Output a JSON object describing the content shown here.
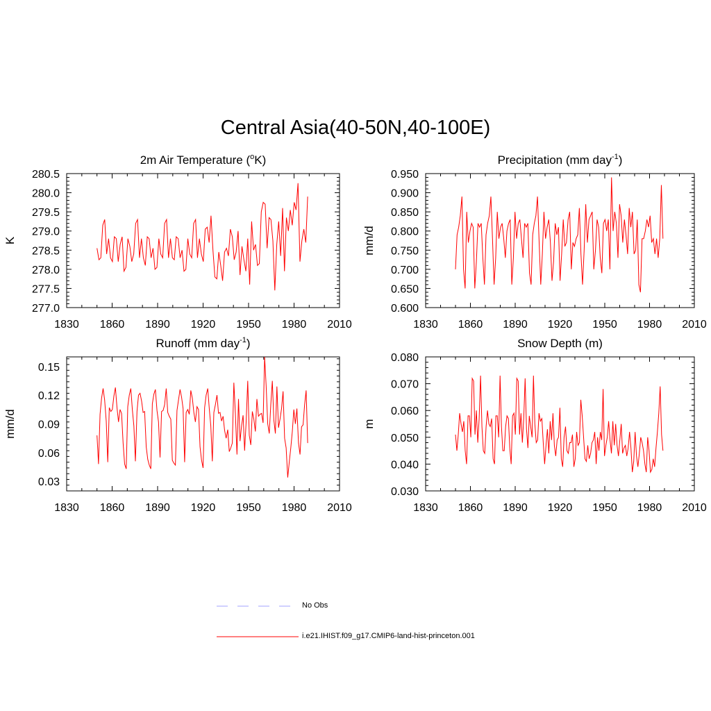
{
  "title": "Central Asia(40-50N,40-100E)",
  "colors": {
    "model": "#ff0000",
    "obs": "#b3b3ff",
    "axis": "#000000"
  },
  "legend": {
    "obs_label": "No Obs",
    "model_label": "i.e21.IHIST.f09_g17.CMIP6-land-hist-princeton.001"
  },
  "chart_data": [
    {
      "type": "line",
      "title_parts": [
        "2m Air Temperature (",
        "o",
        "K)"
      ],
      "ylabel": "K",
      "xlim": [
        1830,
        2010
      ],
      "ylim": [
        277.0,
        280.5
      ],
      "xticks": [
        1830,
        1860,
        1890,
        1920,
        1950,
        1980,
        2010
      ],
      "yticks": [
        277.0,
        277.5,
        278.0,
        278.5,
        279.0,
        279.5,
        280.0,
        280.5
      ],
      "ytick_labels": [
        "277.0",
        "277.5",
        "278.0",
        "278.5",
        "279.0",
        "279.5",
        "280.0",
        "280.5"
      ],
      "series": [
        {
          "x_start": 1850,
          "values": [
            278.55,
            278.25,
            278.3,
            279.15,
            279.3,
            278.4,
            278.8,
            278.3,
            278.2,
            278.85,
            278.8,
            278.2,
            278.65,
            278.85,
            277.95,
            278.05,
            278.8,
            278.6,
            278.2,
            278.4,
            279.2,
            279.3,
            278.3,
            278.8,
            278.3,
            278.1,
            278.85,
            278.8,
            278.3,
            278.55,
            278.0,
            278.05,
            278.8,
            278.4,
            278.3,
            279.2,
            279.3,
            278.3,
            278.8,
            278.3,
            278.25,
            278.85,
            278.8,
            278.3,
            278.5,
            277.95,
            278.0,
            278.8,
            278.4,
            278.3,
            279.2,
            279.3,
            278.3,
            278.8,
            278.4,
            278.2,
            279.05,
            279.1,
            278.7,
            279.4,
            278.5,
            277.8,
            277.75,
            278.45,
            278.1,
            277.7,
            278.45,
            278.55,
            278.35,
            279.05,
            278.85,
            278.25,
            278.45,
            279.0,
            277.85,
            278.6,
            278.25,
            277.95,
            278.8,
            277.6,
            279.25,
            278.5,
            278.65,
            278.1,
            278.15,
            279.5,
            279.75,
            279.7,
            278.55,
            279.35,
            279.3,
            278.75,
            277.45,
            278.65,
            279.25,
            278.35,
            279.6,
            277.95,
            279.35,
            279.0,
            279.55,
            279.15,
            279.75,
            279.55,
            280.25,
            278.2,
            278.75,
            279.05,
            278.7,
            279.9
          ]
        }
      ]
    },
    {
      "type": "line",
      "title_parts": [
        "Precipitation (mm day",
        "-1",
        ")"
      ],
      "ylabel": "mm/d",
      "xlim": [
        1830,
        2010
      ],
      "ylim": [
        0.6,
        0.95
      ],
      "xticks": [
        1830,
        1860,
        1890,
        1920,
        1950,
        1980,
        2010
      ],
      "yticks": [
        0.6,
        0.65,
        0.7,
        0.75,
        0.8,
        0.85,
        0.9,
        0.95
      ],
      "ytick_labels": [
        "0.600",
        "0.650",
        "0.700",
        "0.750",
        "0.800",
        "0.850",
        "0.900",
        "0.950"
      ],
      "series": [
        {
          "x_start": 1850,
          "values": [
            0.7,
            0.79,
            0.81,
            0.84,
            0.89,
            0.7,
            0.65,
            0.85,
            0.77,
            0.8,
            0.82,
            0.81,
            0.65,
            0.72,
            0.82,
            0.81,
            0.82,
            0.73,
            0.66,
            0.79,
            0.82,
            0.84,
            0.89,
            0.78,
            0.66,
            0.73,
            0.85,
            0.78,
            0.81,
            0.82,
            0.78,
            0.73,
            0.8,
            0.82,
            0.83,
            0.66,
            0.73,
            0.85,
            0.78,
            0.82,
            0.83,
            0.78,
            0.73,
            0.82,
            0.81,
            0.82,
            0.69,
            0.66,
            0.79,
            0.82,
            0.84,
            0.89,
            0.77,
            0.66,
            0.74,
            0.85,
            0.78,
            0.81,
            0.83,
            0.77,
            0.67,
            0.72,
            0.82,
            0.79,
            0.81,
            0.67,
            0.74,
            0.83,
            0.76,
            0.77,
            0.83,
            0.85,
            0.7,
            0.77,
            0.76,
            0.78,
            0.79,
            0.86,
            0.74,
            0.66,
            0.75,
            0.87,
            0.77,
            0.83,
            0.84,
            0.85,
            0.7,
            0.75,
            0.83,
            0.81,
            0.73,
            0.69,
            0.82,
            0.83,
            0.8,
            0.83,
            0.7,
            0.94,
            0.8,
            0.85,
            0.82,
            0.73,
            0.87,
            0.84,
            0.77,
            0.83,
            0.79,
            0.74,
            0.86,
            0.81,
            0.85,
            0.74,
            0.75,
            0.83,
            0.66,
            0.64,
            0.78,
            0.78,
            0.8,
            0.83,
            0.81,
            0.84,
            0.77,
            0.78,
            0.74,
            0.78,
            0.73,
            0.78,
            0.92,
            0.78
          ]
        }
      ]
    },
    {
      "type": "line",
      "title_parts": [
        "Runoff (mm day",
        "-1",
        ")"
      ],
      "ylabel": "mm/d",
      "xlim": [
        1830,
        2010
      ],
      "ylim": [
        0.02,
        0.16
      ],
      "xticks": [
        1830,
        1860,
        1890,
        1920,
        1950,
        1980,
        2010
      ],
      "yticks": [
        0.03,
        0.06,
        0.09,
        0.12,
        0.15
      ],
      "ytick_labels": [
        "0.03",
        "0.06",
        "0.09",
        "0.12",
        "0.15"
      ],
      "series": [
        {
          "x_start": 1850,
          "values": [
            0.078,
            0.048,
            0.1,
            0.117,
            0.127,
            0.115,
            0.093,
            0.05,
            0.107,
            0.103,
            0.105,
            0.119,
            0.128,
            0.107,
            0.092,
            0.105,
            0.101,
            0.07,
            0.048,
            0.043,
            0.108,
            0.12,
            0.127,
            0.105,
            0.088,
            0.051,
            0.103,
            0.12,
            0.122,
            0.114,
            0.102,
            0.103,
            0.066,
            0.053,
            0.047,
            0.043,
            0.111,
            0.121,
            0.126,
            0.104,
            0.092,
            0.055,
            0.103,
            0.104,
            0.11,
            0.127,
            0.102,
            0.098,
            0.095,
            0.052,
            0.049,
            0.047,
            0.104,
            0.115,
            0.126,
            0.118,
            0.106,
            0.05,
            0.102,
            0.105,
            0.1,
            0.125,
            0.117,
            0.102,
            0.092,
            0.108,
            0.105,
            0.066,
            0.052,
            0.044,
            0.107,
            0.12,
            0.127,
            0.106,
            0.088,
            0.051,
            0.102,
            0.11,
            0.12,
            0.101,
            0.102,
            0.093,
            0.098,
            0.083,
            0.075,
            0.084,
            0.061,
            0.065,
            0.07,
            0.133,
            0.101,
            0.058,
            0.116,
            0.072,
            0.088,
            0.099,
            0.062,
            0.092,
            0.135,
            0.078,
            0.068,
            0.103,
            0.095,
            0.082,
            0.116,
            0.098,
            0.1,
            0.101,
            0.091,
            0.16,
            0.13,
            0.09,
            0.08,
            0.11,
            0.135,
            0.094,
            0.08,
            0.129,
            0.086,
            0.095,
            0.106,
            0.124,
            0.075,
            0.065,
            0.034,
            0.05,
            0.065,
            0.082,
            0.105,
            0.09,
            0.106,
            0.07,
            0.058,
            0.087,
            0.089,
            0.11,
            0.125,
            0.07
          ]
        }
      ]
    },
    {
      "type": "line",
      "title_parts": [
        "Snow Depth (m)"
      ],
      "ylabel": "m",
      "xlim": [
        1830,
        2010
      ],
      "ylim": [
        0.03,
        0.08
      ],
      "xticks": [
        1830,
        1860,
        1890,
        1920,
        1950,
        1980,
        2010
      ],
      "yticks": [
        0.03,
        0.04,
        0.05,
        0.06,
        0.07,
        0.08
      ],
      "ytick_labels": [
        "0.030",
        "0.040",
        "0.050",
        "0.060",
        "0.070",
        "0.080"
      ],
      "series": [
        {
          "x_start": 1850,
          "values": [
            0.051,
            0.045,
            0.051,
            0.059,
            0.055,
            0.052,
            0.056,
            0.045,
            0.04,
            0.058,
            0.058,
            0.05,
            0.072,
            0.071,
            0.051,
            0.06,
            0.048,
            0.057,
            0.073,
            0.054,
            0.045,
            0.044,
            0.054,
            0.06,
            0.055,
            0.054,
            0.057,
            0.042,
            0.04,
            0.058,
            0.058,
            0.05,
            0.073,
            0.054,
            0.045,
            0.045,
            0.054,
            0.058,
            0.057,
            0.046,
            0.04,
            0.058,
            0.059,
            0.051,
            0.072,
            0.071,
            0.051,
            0.059,
            0.048,
            0.057,
            0.072,
            0.053,
            0.046,
            0.058,
            0.054,
            0.05,
            0.073,
            0.055,
            0.048,
            0.049,
            0.059,
            0.056,
            0.057,
            0.048,
            0.04,
            0.047,
            0.053,
            0.044,
            0.056,
            0.049,
            0.059,
            0.047,
            0.043,
            0.049,
            0.05,
            0.061,
            0.042,
            0.039,
            0.05,
            0.054,
            0.045,
            0.044,
            0.048,
            0.048,
            0.051,
            0.039,
            0.042,
            0.052,
            0.047,
            0.048,
            0.064,
            0.058,
            0.05,
            0.042,
            0.041,
            0.047,
            0.042,
            0.044,
            0.048,
            0.049,
            0.052,
            0.04,
            0.05,
            0.045,
            0.052,
            0.049,
            0.068,
            0.043,
            0.047,
            0.05,
            0.056,
            0.049,
            0.044,
            0.056,
            0.047,
            0.055,
            0.047,
            0.043,
            0.049,
            0.055,
            0.044,
            0.046,
            0.047,
            0.043,
            0.046,
            0.052,
            0.046,
            0.037,
            0.041,
            0.052,
            0.043,
            0.039,
            0.044,
            0.05,
            0.048,
            0.045,
            0.04,
            0.037,
            0.05,
            0.045,
            0.037,
            0.038,
            0.042,
            0.039,
            0.046,
            0.052,
            0.059,
            0.069,
            0.051,
            0.045
          ]
        }
      ]
    }
  ]
}
